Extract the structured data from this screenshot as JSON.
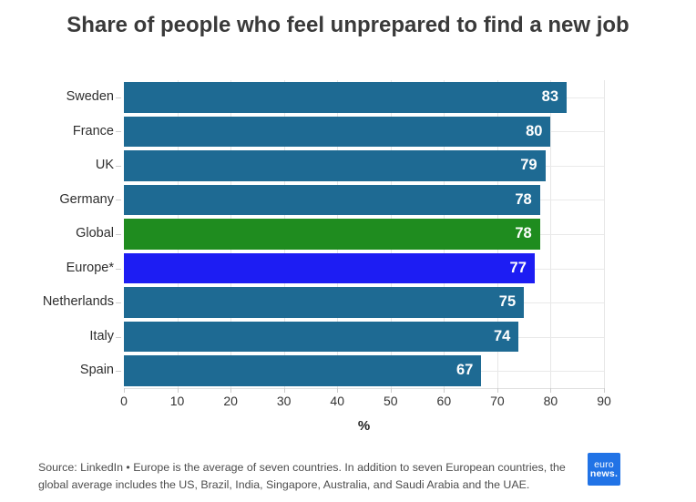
{
  "title": "Share of people who feel unprepared to find a new job",
  "chart_data": {
    "type": "bar",
    "orientation": "horizontal",
    "title": "Share of people who feel unprepared to find a new job",
    "categories": [
      "Sweden",
      "France",
      "UK",
      "Germany",
      "Global",
      "Europe*",
      "Netherlands",
      "Italy",
      "Spain"
    ],
    "values": [
      83,
      80,
      79,
      78,
      78,
      77,
      75,
      74,
      67
    ],
    "bar_colors": [
      "#1e6a93",
      "#1e6a93",
      "#1e6a93",
      "#1e6a93",
      "#1f8c1f",
      "#1d1df3",
      "#1e6a93",
      "#1e6a93",
      "#1e6a93"
    ],
    "value_label_position": "inside-end",
    "xlabel": "%",
    "ylabel": "",
    "xlim": [
      0,
      90
    ],
    "x_ticks": [
      0,
      10,
      20,
      30,
      40,
      50,
      60,
      70,
      80,
      90
    ],
    "grid": true,
    "legend": "none"
  },
  "colors": {
    "bar_default": "#1e6a93",
    "bar_global_highlight": "#1f8c1f",
    "bar_europe_highlight": "#1d1df3",
    "gridline": "#e7e7e7",
    "title_text": "#3a3a3a",
    "source_text": "#4d4d4d",
    "logo_background": "#2173e6"
  },
  "footer": {
    "source_text": "Source: LinkedIn • Europe is the average of seven countries. In addition to seven European countries, the global average includes the US, Brazil, India, Singapore, Australia, and Saudi Arabia and the UAE.",
    "logo": {
      "line1": "euro",
      "line2": "news."
    }
  }
}
